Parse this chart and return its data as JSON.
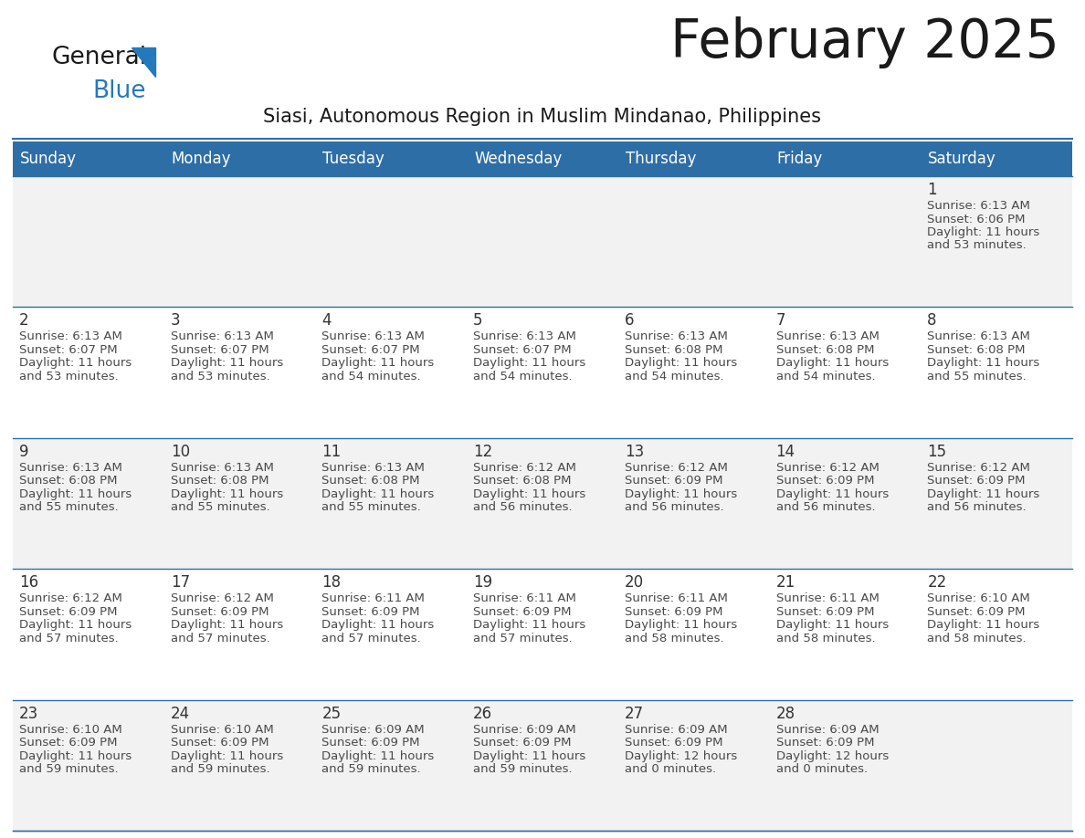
{
  "title": "February 2025",
  "subtitle": "Siasi, Autonomous Region in Muslim Mindanao, Philippines",
  "header_bg": "#2E6EA6",
  "header_text_color": "#FFFFFF",
  "cell_bg_row0": "#F2F2F2",
  "cell_bg_row1": "#FFFFFF",
  "cell_bg_row2": "#F2F2F2",
  "cell_bg_row3": "#FFFFFF",
  "cell_bg_row4": "#F2F2F2",
  "day_headers": [
    "Sunday",
    "Monday",
    "Tuesday",
    "Wednesday",
    "Thursday",
    "Friday",
    "Saturday"
  ],
  "days": [
    {
      "day": 1,
      "col": 6,
      "row": 0,
      "sunrise": "6:13 AM",
      "sunset": "6:06 PM",
      "daylight_h": "11 hours",
      "daylight_m": "53 minutes."
    },
    {
      "day": 2,
      "col": 0,
      "row": 1,
      "sunrise": "6:13 AM",
      "sunset": "6:07 PM",
      "daylight_h": "11 hours",
      "daylight_m": "53 minutes."
    },
    {
      "day": 3,
      "col": 1,
      "row": 1,
      "sunrise": "6:13 AM",
      "sunset": "6:07 PM",
      "daylight_h": "11 hours",
      "daylight_m": "53 minutes."
    },
    {
      "day": 4,
      "col": 2,
      "row": 1,
      "sunrise": "6:13 AM",
      "sunset": "6:07 PM",
      "daylight_h": "11 hours",
      "daylight_m": "54 minutes."
    },
    {
      "day": 5,
      "col": 3,
      "row": 1,
      "sunrise": "6:13 AM",
      "sunset": "6:07 PM",
      "daylight_h": "11 hours",
      "daylight_m": "54 minutes."
    },
    {
      "day": 6,
      "col": 4,
      "row": 1,
      "sunrise": "6:13 AM",
      "sunset": "6:08 PM",
      "daylight_h": "11 hours",
      "daylight_m": "54 minutes."
    },
    {
      "day": 7,
      "col": 5,
      "row": 1,
      "sunrise": "6:13 AM",
      "sunset": "6:08 PM",
      "daylight_h": "11 hours",
      "daylight_m": "54 minutes."
    },
    {
      "day": 8,
      "col": 6,
      "row": 1,
      "sunrise": "6:13 AM",
      "sunset": "6:08 PM",
      "daylight_h": "11 hours",
      "daylight_m": "55 minutes."
    },
    {
      "day": 9,
      "col": 0,
      "row": 2,
      "sunrise": "6:13 AM",
      "sunset": "6:08 PM",
      "daylight_h": "11 hours",
      "daylight_m": "55 minutes."
    },
    {
      "day": 10,
      "col": 1,
      "row": 2,
      "sunrise": "6:13 AM",
      "sunset": "6:08 PM",
      "daylight_h": "11 hours",
      "daylight_m": "55 minutes."
    },
    {
      "day": 11,
      "col": 2,
      "row": 2,
      "sunrise": "6:13 AM",
      "sunset": "6:08 PM",
      "daylight_h": "11 hours",
      "daylight_m": "55 minutes."
    },
    {
      "day": 12,
      "col": 3,
      "row": 2,
      "sunrise": "6:12 AM",
      "sunset": "6:08 PM",
      "daylight_h": "11 hours",
      "daylight_m": "56 minutes."
    },
    {
      "day": 13,
      "col": 4,
      "row": 2,
      "sunrise": "6:12 AM",
      "sunset": "6:09 PM",
      "daylight_h": "11 hours",
      "daylight_m": "56 minutes."
    },
    {
      "day": 14,
      "col": 5,
      "row": 2,
      "sunrise": "6:12 AM",
      "sunset": "6:09 PM",
      "daylight_h": "11 hours",
      "daylight_m": "56 minutes."
    },
    {
      "day": 15,
      "col": 6,
      "row": 2,
      "sunrise": "6:12 AM",
      "sunset": "6:09 PM",
      "daylight_h": "11 hours",
      "daylight_m": "56 minutes."
    },
    {
      "day": 16,
      "col": 0,
      "row": 3,
      "sunrise": "6:12 AM",
      "sunset": "6:09 PM",
      "daylight_h": "11 hours",
      "daylight_m": "57 minutes."
    },
    {
      "day": 17,
      "col": 1,
      "row": 3,
      "sunrise": "6:12 AM",
      "sunset": "6:09 PM",
      "daylight_h": "11 hours",
      "daylight_m": "57 minutes."
    },
    {
      "day": 18,
      "col": 2,
      "row": 3,
      "sunrise": "6:11 AM",
      "sunset": "6:09 PM",
      "daylight_h": "11 hours",
      "daylight_m": "57 minutes."
    },
    {
      "day": 19,
      "col": 3,
      "row": 3,
      "sunrise": "6:11 AM",
      "sunset": "6:09 PM",
      "daylight_h": "11 hours",
      "daylight_m": "57 minutes."
    },
    {
      "day": 20,
      "col": 4,
      "row": 3,
      "sunrise": "6:11 AM",
      "sunset": "6:09 PM",
      "daylight_h": "11 hours",
      "daylight_m": "58 minutes."
    },
    {
      "day": 21,
      "col": 5,
      "row": 3,
      "sunrise": "6:11 AM",
      "sunset": "6:09 PM",
      "daylight_h": "11 hours",
      "daylight_m": "58 minutes."
    },
    {
      "day": 22,
      "col": 6,
      "row": 3,
      "sunrise": "6:10 AM",
      "sunset": "6:09 PM",
      "daylight_h": "11 hours",
      "daylight_m": "58 minutes."
    },
    {
      "day": 23,
      "col": 0,
      "row": 4,
      "sunrise": "6:10 AM",
      "sunset": "6:09 PM",
      "daylight_h": "11 hours",
      "daylight_m": "59 minutes."
    },
    {
      "day": 24,
      "col": 1,
      "row": 4,
      "sunrise": "6:10 AM",
      "sunset": "6:09 PM",
      "daylight_h": "11 hours",
      "daylight_m": "59 minutes."
    },
    {
      "day": 25,
      "col": 2,
      "row": 4,
      "sunrise": "6:09 AM",
      "sunset": "6:09 PM",
      "daylight_h": "11 hours",
      "daylight_m": "59 minutes."
    },
    {
      "day": 26,
      "col": 3,
      "row": 4,
      "sunrise": "6:09 AM",
      "sunset": "6:09 PM",
      "daylight_h": "11 hours",
      "daylight_m": "59 minutes."
    },
    {
      "day": 27,
      "col": 4,
      "row": 4,
      "sunrise": "6:09 AM",
      "sunset": "6:09 PM",
      "daylight_h": "12 hours",
      "daylight_m": "0 minutes."
    },
    {
      "day": 28,
      "col": 5,
      "row": 4,
      "sunrise": "6:09 AM",
      "sunset": "6:09 PM",
      "daylight_h": "12 hours",
      "daylight_m": "0 minutes."
    }
  ],
  "num_rows": 5,
  "num_cols": 7,
  "logo_color_general": "#1a1a1a",
  "logo_color_blue": "#2479BD",
  "title_color": "#1a1a1a",
  "subtitle_color": "#1a1a1a",
  "cell_line_color": "#2E6EA6",
  "text_color": "#4a4a4a",
  "day_num_color": "#333333"
}
